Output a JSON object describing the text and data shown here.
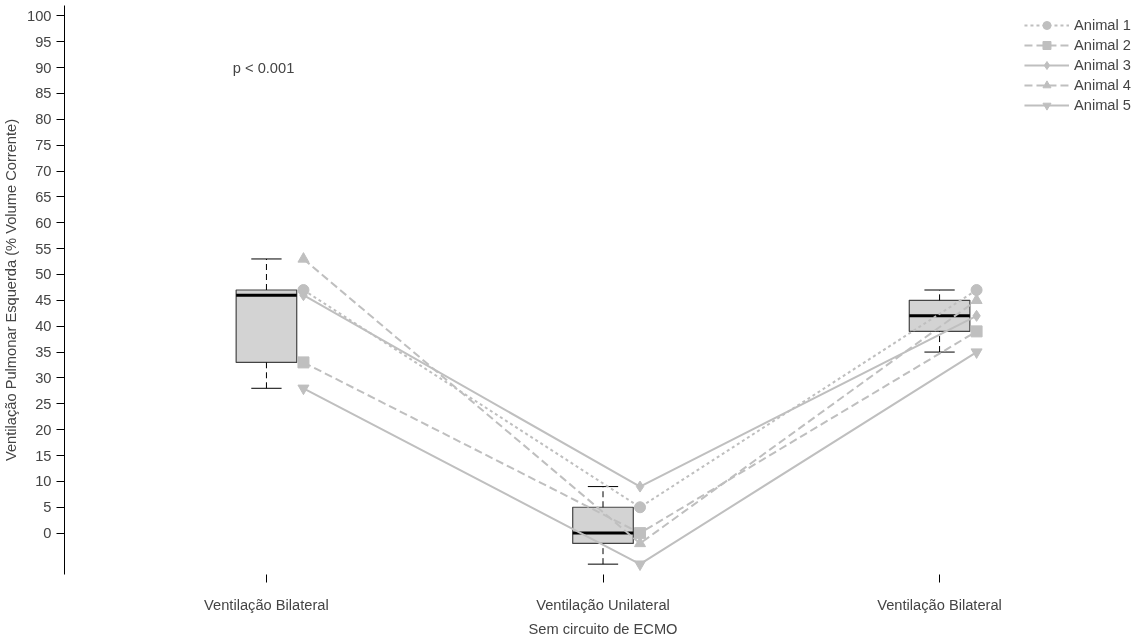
{
  "chart_data": {
    "type": "box",
    "xlabel": "Sem circuito de ECMO",
    "ylabel": "Ventilação Pulmonar Esquerda (% Volume Corrente)",
    "categories": [
      "Ventilação Bilateral",
      "Ventilação Unilateral",
      "Ventilação Bilateral"
    ],
    "boxes": [
      {
        "low": 28,
        "q1": 33,
        "median": 46,
        "q3": 47,
        "high": 53
      },
      {
        "low": -6,
        "q1": -2,
        "median": 0,
        "q3": 5,
        "high": 9
      },
      {
        "low": 35,
        "q1": 39,
        "median": 42,
        "q3": 45,
        "high": 47
      }
    ],
    "color": "#d3d3d3",
    "ylim": [
      -8,
      102
    ],
    "yticks": [
      0,
      5,
      10,
      15,
      20,
      25,
      30,
      35,
      40,
      45,
      50,
      55,
      60,
      65,
      70,
      75,
      80,
      85,
      90,
      95,
      100
    ],
    "annotations": [
      "p < 0.001"
    ],
    "legend": "top right",
    "grid": false,
    "series": [
      {
        "name": "Animal 1",
        "type": "line",
        "color": "#bfbfbf",
        "marker": "circle",
        "line_style": "dotted",
        "values": [
          47,
          5,
          47
        ]
      },
      {
        "name": "Animal 2",
        "type": "line",
        "color": "#bfbfbf",
        "marker": "square",
        "line_style": "dashed",
        "values": [
          33,
          0,
          39
        ]
      },
      {
        "name": "Animal 3",
        "type": "line",
        "color": "#bfbfbf",
        "marker": "diamond",
        "line_style": "solid",
        "values": [
          46,
          9,
          42
        ]
      },
      {
        "name": "Animal 4",
        "type": "line",
        "color": "#bfbfbf",
        "marker": "triangle",
        "line_style": "dashed",
        "values": [
          53,
          -2,
          45
        ]
      },
      {
        "name": "Animal 5",
        "type": "line",
        "color": "#bfbfbf",
        "marker": "triangle",
        "line_style": "solid",
        "values": [
          28,
          -6,
          35
        ]
      }
    ]
  }
}
